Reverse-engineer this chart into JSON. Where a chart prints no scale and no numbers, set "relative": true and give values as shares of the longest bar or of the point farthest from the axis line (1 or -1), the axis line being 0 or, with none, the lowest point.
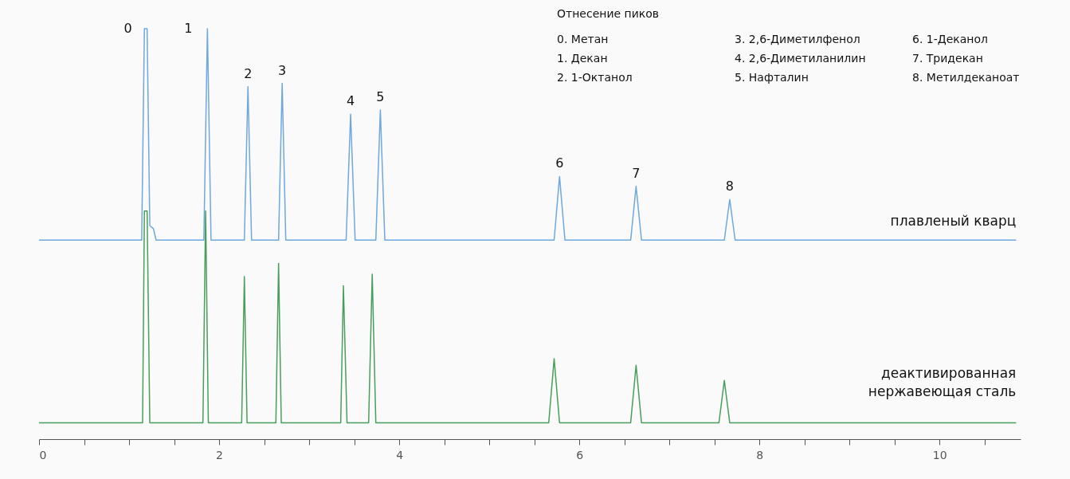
{
  "chart_data": {
    "type": "line",
    "relative": true,
    "xlim": [
      0,
      10.9
    ],
    "xticks": [
      0,
      {
        "value": 0.5,
        "label": null
      },
      {
        "value": 1,
        "label": null
      },
      {
        "value": 1.5,
        "label": null
      },
      2,
      {
        "value": 2.5,
        "label": null
      },
      {
        "value": 3,
        "label": null
      },
      {
        "value": 3.5,
        "label": null
      },
      4,
      {
        "value": 4.5,
        "label": null
      },
      {
        "value": 5,
        "label": null
      },
      {
        "value": 5.5,
        "label": null
      },
      6,
      {
        "value": 6.5,
        "label": null
      },
      {
        "value": 7,
        "label": null
      },
      {
        "value": 7.5,
        "label": null
      },
      8,
      {
        "value": 8.5,
        "label": null
      },
      {
        "value": 9,
        "label": null
      },
      {
        "value": 9.5,
        "label": null
      },
      10,
      {
        "value": 10.5,
        "label": null
      }
    ],
    "tick_labels": "x",
    "grid": false,
    "legend": false,
    "marker": "none",
    "line_style": "solid",
    "series": [
      {
        "name": "плавленый кварц",
        "color": "#6fa8dc",
        "x": [
          0,
          1.14,
          1.17,
          1.2,
          1.23,
          1.27,
          1.3,
          1.83,
          1.87,
          1.91,
          2.28,
          2.32,
          2.36,
          2.66,
          2.7,
          2.74,
          3.41,
          3.46,
          3.51,
          3.74,
          3.79,
          3.84,
          5.72,
          5.78,
          5.84,
          6.57,
          6.63,
          6.69,
          7.61,
          7.67,
          7.73,
          10.85
        ],
        "values": [
          0.485,
          0.485,
          1.0,
          1.0,
          0.52,
          0.513,
          0.485,
          0.485,
          1.0,
          0.485,
          0.485,
          0.859,
          0.485,
          0.485,
          0.867,
          0.485,
          0.485,
          0.792,
          0.485,
          0.485,
          0.802,
          0.485,
          0.485,
          0.64,
          0.485,
          0.485,
          0.616,
          0.485,
          0.485,
          0.584,
          0.485,
          0.485
        ]
      },
      {
        "name": "деактивированная\nнержавеющая сталь",
        "color": "#4a9e5c",
        "x": [
          0,
          1.15,
          1.17,
          1.2,
          1.23,
          1.82,
          1.85,
          1.88,
          2.25,
          2.28,
          2.31,
          2.63,
          2.66,
          2.69,
          3.35,
          3.38,
          3.42,
          3.66,
          3.7,
          3.74,
          5.66,
          5.72,
          5.78,
          6.57,
          6.63,
          6.69,
          7.55,
          7.61,
          7.67,
          10.85
        ],
        "values": [
          0.04,
          0.04,
          0.556,
          0.556,
          0.04,
          0.04,
          0.556,
          0.04,
          0.04,
          0.396,
          0.04,
          0.04,
          0.428,
          0.04,
          0.04,
          0.374,
          0.04,
          0.04,
          0.402,
          0.04,
          0.04,
          0.196,
          0.04,
          0.04,
          0.18,
          0.04,
          0.04,
          0.143,
          0.04,
          0.04
        ]
      }
    ],
    "annotations": [
      "Отнесение пиков",
      "0.  Метан",
      "1.  Декан",
      "2.  1-Октанол",
      "3.  2,6-Диметилфенол",
      "4.  2,6-Диметиланилин",
      "5.  Нафталин",
      "6.  1-Деканол",
      "7.  Тридекан",
      "8.  Метилдеканоат",
      {
        "text": "0",
        "x": 1.2,
        "y": 1.0
      },
      {
        "text": "1",
        "x": 1.87,
        "y": 1.0
      },
      {
        "text": "2",
        "x": 2.32,
        "y": 0.859
      },
      {
        "text": "3",
        "x": 2.7,
        "y": 0.867
      },
      {
        "text": "4",
        "x": 3.46,
        "y": 0.792
      },
      {
        "text": "5",
        "x": 3.79,
        "y": 0.802
      },
      {
        "text": "6",
        "x": 5.78,
        "y": 0.64
      },
      {
        "text": "7",
        "x": 6.63,
        "y": 0.616
      },
      {
        "text": "8",
        "x": 7.67,
        "y": 0.584
      }
    ]
  }
}
